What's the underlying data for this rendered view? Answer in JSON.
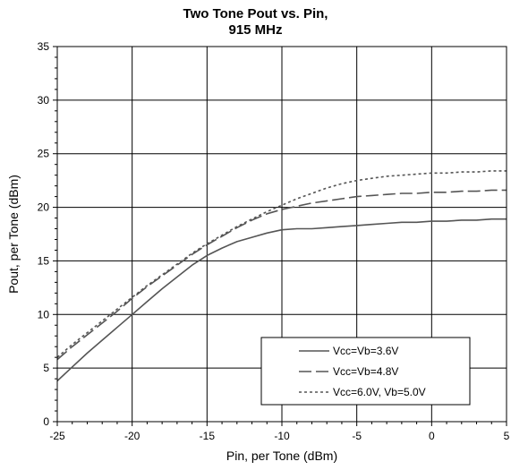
{
  "chart_data": {
    "type": "line",
    "title_lines": [
      "Two Tone Pout vs. Pin,",
      "915 MHz"
    ],
    "xlabel": "Pin, per Tone (dBm)",
    "ylabel": "Pout, per Tone (dBm)",
    "xlim": [
      -25,
      5
    ],
    "ylim": [
      0,
      35
    ],
    "x_ticks": [
      -25,
      -20,
      -15,
      -10,
      -5,
      0,
      5
    ],
    "y_ticks": [
      0,
      5,
      10,
      15,
      20,
      25,
      30,
      35
    ],
    "x_tick_labels": [
      "-25",
      "-20",
      "-15",
      "-10",
      "-5",
      "0",
      "5"
    ],
    "y_tick_labels": [
      "0",
      "5",
      "10",
      "15",
      "20",
      "25",
      "30",
      "35"
    ],
    "grid": true,
    "legend_position": "bottom-right",
    "series": [
      {
        "name": "Vcc=Vb=3.6V",
        "style": "solid",
        "color": "#555555",
        "x": [
          -25,
          -24,
          -23,
          -22,
          -21,
          -20,
          -19,
          -18,
          -17,
          -16,
          -15,
          -14,
          -13,
          -12,
          -11,
          -10,
          -9,
          -8,
          -7,
          -6,
          -5,
          -4,
          -3,
          -2,
          -1,
          0,
          1,
          2,
          3,
          4,
          5
        ],
        "y": [
          3.8,
          5.1,
          6.4,
          7.6,
          8.8,
          10.0,
          11.2,
          12.4,
          13.5,
          14.6,
          15.5,
          16.2,
          16.8,
          17.2,
          17.6,
          17.9,
          18.0,
          18.0,
          18.1,
          18.2,
          18.3,
          18.4,
          18.5,
          18.6,
          18.6,
          18.7,
          18.7,
          18.8,
          18.8,
          18.9,
          18.9
        ]
      },
      {
        "name": "Vcc=Vb=4.8V",
        "style": "long-dash",
        "color": "#555555",
        "x": [
          -25,
          -24,
          -23,
          -22,
          -21,
          -20,
          -19,
          -18,
          -17,
          -16,
          -15,
          -14,
          -13,
          -12,
          -11,
          -10,
          -9,
          -8,
          -7,
          -6,
          -5,
          -4,
          -3,
          -2,
          -1,
          0,
          1,
          2,
          3,
          4,
          5
        ],
        "y": [
          5.8,
          7.0,
          8.1,
          9.2,
          10.3,
          11.5,
          12.6,
          13.6,
          14.6,
          15.6,
          16.5,
          17.3,
          18.1,
          18.8,
          19.4,
          19.8,
          20.1,
          20.4,
          20.6,
          20.8,
          21.0,
          21.1,
          21.2,
          21.3,
          21.3,
          21.4,
          21.4,
          21.5,
          21.5,
          21.6,
          21.6
        ]
      },
      {
        "name": "Vcc=6.0V, Vb=5.0V",
        "style": "short-dash",
        "color": "#555555",
        "x": [
          -25,
          -24,
          -23,
          -22,
          -21,
          -20,
          -19,
          -18,
          -17,
          -16,
          -15,
          -14,
          -13,
          -12,
          -11,
          -10,
          -9,
          -8,
          -7,
          -6,
          -5,
          -4,
          -3,
          -2,
          -1,
          0,
          1,
          2,
          3,
          4,
          5
        ],
        "y": [
          6.0,
          7.2,
          8.3,
          9.4,
          10.5,
          11.6,
          12.7,
          13.7,
          14.7,
          15.7,
          16.6,
          17.4,
          18.2,
          18.9,
          19.6,
          20.2,
          20.8,
          21.3,
          21.8,
          22.2,
          22.5,
          22.7,
          22.9,
          23.0,
          23.1,
          23.2,
          23.2,
          23.3,
          23.3,
          23.4,
          23.4
        ]
      }
    ]
  }
}
